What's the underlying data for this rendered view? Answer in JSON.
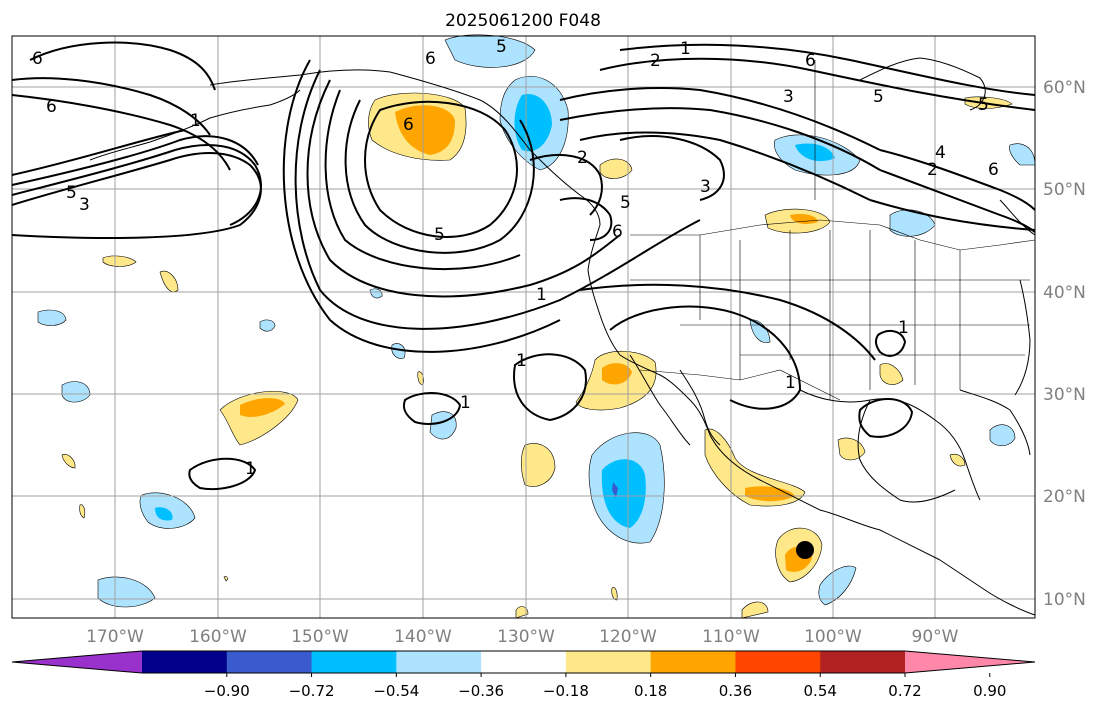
{
  "map": {
    "title": "2025061200 F048",
    "lon_labels": [
      "170°W",
      "160°W",
      "150°W",
      "140°W",
      "130°W",
      "120°W",
      "110°W",
      "100°W",
      "90°W"
    ],
    "lat_labels": [
      "60°N",
      "50°N",
      "40°N",
      "30°N",
      "20°N",
      "10°N"
    ],
    "contour_labels": [
      "1",
      "2",
      "3",
      "4",
      "5",
      "6"
    ],
    "marker": "storm-center-dot"
  },
  "colorbar": {
    "tick_labels": [
      "−0.90",
      "−0.72",
      "−0.54",
      "−0.36",
      "−0.18",
      "0.18",
      "0.36",
      "0.54",
      "0.72",
      "0.90"
    ],
    "colors": [
      "#9932CC",
      "#00008B",
      "#3A5BCD",
      "#00BFFF",
      "#AEE3FF",
      "#FFFFFF",
      "#FFE88A",
      "#FFA500",
      "#FF4500",
      "#B22222",
      "#FF88AA"
    ]
  },
  "colors": {
    "grid": "#a0a0a0",
    "contour": "#000000",
    "frame": "#000000"
  }
}
